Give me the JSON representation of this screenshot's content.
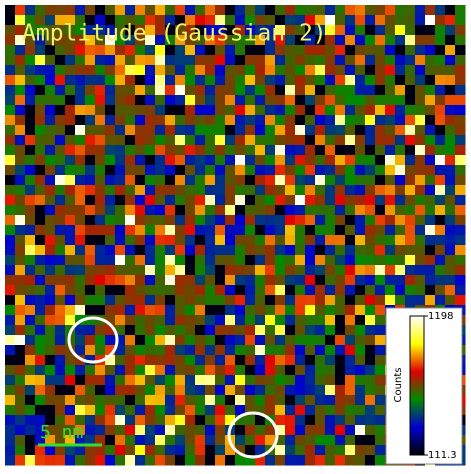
{
  "chart_data": {
    "type": "heatmap",
    "title": "Amplitude (Gaussian 2)",
    "colorbar_label": "Counts",
    "clim": [
      111.3,
      1198
    ],
    "cticks": [
      111.3,
      1198
    ],
    "colormap": [
      "#000000",
      "#0000d0",
      "#008a00",
      "#e00000",
      "#ffff00",
      "#ffffff"
    ],
    "scale_bar_label": "5 nm"
  }
}
